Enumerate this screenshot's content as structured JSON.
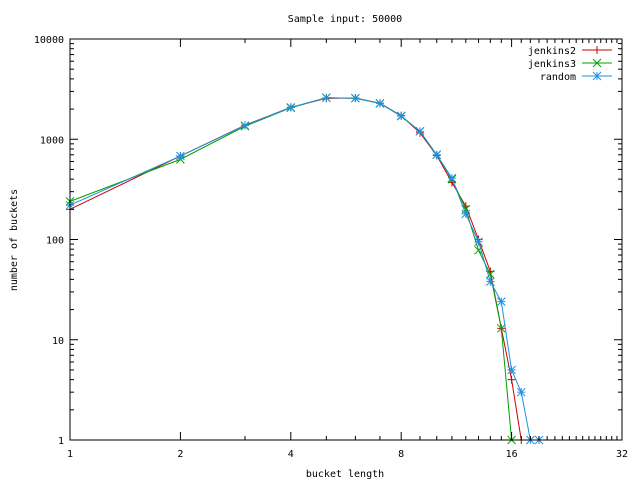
{
  "chart_data": {
    "type": "line",
    "title": "Sample input: 50000",
    "xlabel": "bucket length",
    "ylabel": "number of buckets",
    "x_scale": "log2",
    "y_scale": "log10",
    "xlim": [
      1,
      32
    ],
    "ylim": [
      1,
      10000
    ],
    "x_ticks": [
      1,
      2,
      4,
      8,
      16,
      32
    ],
    "x_tick_labels": [
      "1",
      "2",
      "4",
      "8",
      "16",
      "32"
    ],
    "y_ticks": [
      1,
      10,
      100,
      1000,
      10000
    ],
    "y_tick_labels": [
      "1",
      "10",
      "100",
      "1000",
      "10000"
    ],
    "grid": false,
    "legend_position": "top-right",
    "series": [
      {
        "name": "jenkins2",
        "color": "#cc0000",
        "marker": "plus",
        "x": [
          1,
          2,
          3,
          4,
          5,
          6,
          7,
          8,
          9,
          10,
          11,
          12,
          13,
          14,
          15,
          16,
          17
        ],
        "y": [
          200,
          680,
          1380,
          2080,
          2560,
          2580,
          2290,
          1720,
          1160,
          690,
          370,
          215,
          100,
          48,
          13,
          4,
          1
        ]
      },
      {
        "name": "jenkins3",
        "color": "#00a000",
        "marker": "cross",
        "x": [
          1,
          2,
          3,
          4,
          5,
          6,
          7,
          8,
          9,
          10,
          11,
          12,
          13,
          14,
          15,
          16
        ],
        "y": [
          240,
          630,
          1350,
          2060,
          2600,
          2560,
          2280,
          1700,
          1200,
          700,
          400,
          200,
          78,
          45,
          13,
          1
        ]
      },
      {
        "name": "random",
        "color": "#1e90e0",
        "marker": "star",
        "x": [
          1,
          2,
          3,
          4,
          5,
          6,
          7,
          8,
          9,
          10,
          11,
          12,
          13,
          14,
          15,
          16,
          17,
          18,
          19
        ],
        "y": [
          220,
          680,
          1370,
          2080,
          2590,
          2570,
          2280,
          1710,
          1200,
          700,
          410,
          180,
          95,
          38,
          24,
          5,
          3,
          1,
          1
        ]
      }
    ]
  }
}
